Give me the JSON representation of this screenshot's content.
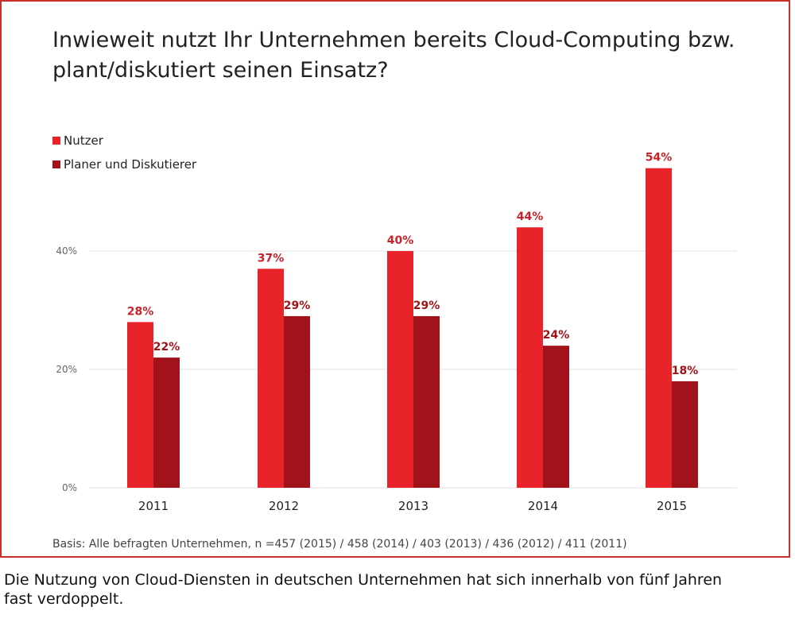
{
  "chart_data": {
    "type": "bar",
    "title_line1": "Inwieweit nutzt Ihr Unternehmen bereits Cloud-Computing bzw.",
    "title_line2": "plant/diskutiert seinen Einsatz?",
    "categories": [
      "2011",
      "2012",
      "2013",
      "2014",
      "2015"
    ],
    "series": [
      {
        "name": "Nutzer",
        "values": [
          28,
          37,
          40,
          44,
          54
        ],
        "labels": [
          "28%",
          "37%",
          "40%",
          "44%",
          "54%"
        ],
        "color": "#e8232a",
        "label_color": "#c8232a"
      },
      {
        "name": "Planer und Diskutierer",
        "values": [
          22,
          29,
          29,
          24,
          18
        ],
        "labels": [
          "22%",
          "29%",
          "29%",
          "24%",
          "18%"
        ],
        "color": "#a1121a",
        "label_color": "#9e1218"
      }
    ],
    "yticks": [
      0,
      20,
      40
    ],
    "ytick_labels": [
      "0%",
      "20%",
      "40%"
    ],
    "ylim": [
      0,
      54
    ],
    "grid": true,
    "legend_position": "top-left"
  },
  "basis": "Basis: Alle befragten Unternehmen, n =457 (2015) / 458 (2014) / 403 (2013) / 436 (2012) / 411 (2011)",
  "caption_line1": "Die Nutzung von Cloud-Diensten in deutschen Unternehmen hat sich innerhalb von fünf Jahren",
  "caption_line2": "fast verdoppelt."
}
